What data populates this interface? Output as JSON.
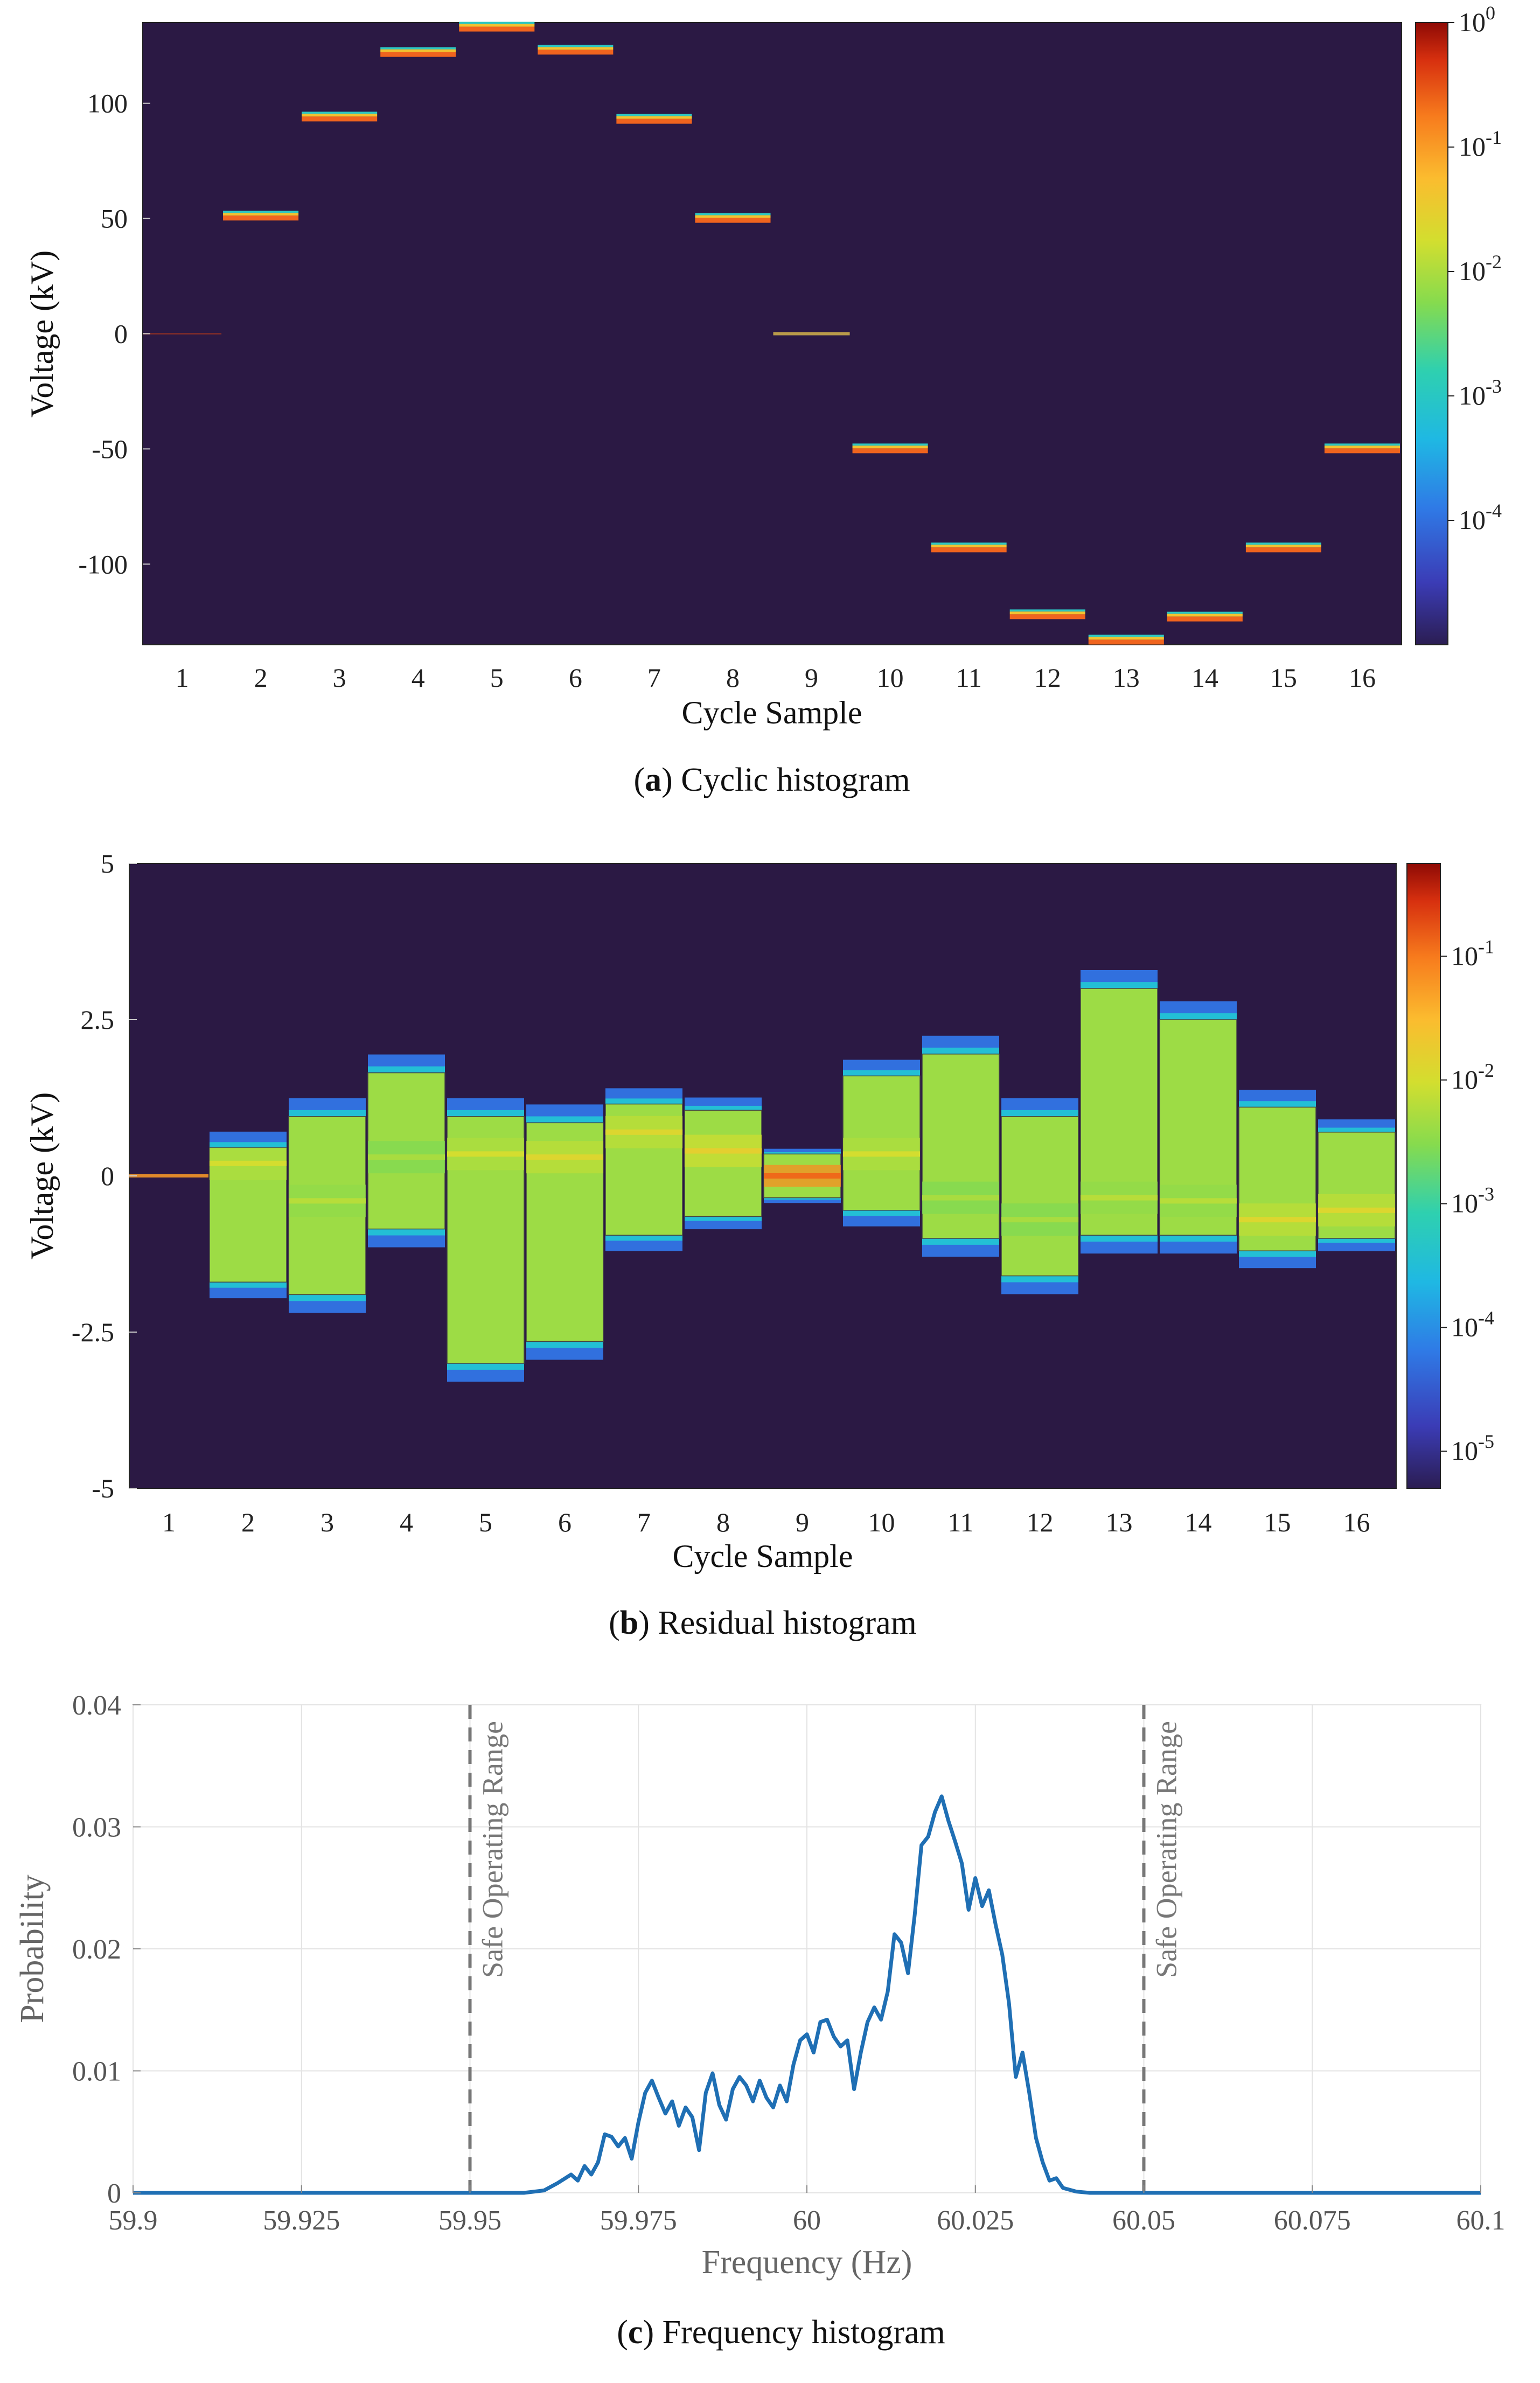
{
  "chart_data": [
    {
      "id": "a",
      "type": "heatmap",
      "caption_letter": "a",
      "caption_text": "Cyclic histogram",
      "xlabel": "Cycle Sample",
      "ylabel": "Voltage (kV)",
      "x_ticks": [
        "1",
        "2",
        "3",
        "4",
        "5",
        "6",
        "7",
        "8",
        "9",
        "10",
        "11",
        "12",
        "13",
        "14",
        "15",
        "16"
      ],
      "y_ticks": [
        {
          "value": 100,
          "label": "100"
        },
        {
          "value": 50,
          "label": "50"
        },
        {
          "value": 0,
          "label": "0"
        },
        {
          "value": -50,
          "label": "-50"
        },
        {
          "value": -100,
          "label": "-100"
        }
      ],
      "ylim": [
        -135,
        135
      ],
      "colorbar_ticks": [
        {
          "exp": 0,
          "label": "10",
          "sup": "0"
        },
        {
          "exp": -1,
          "label": "10",
          "sup": "-1"
        },
        {
          "exp": -2,
          "label": "10",
          "sup": "-2"
        },
        {
          "exp": -3,
          "label": "10",
          "sup": "-3"
        },
        {
          "exp": -4,
          "label": "10",
          "sup": "-4"
        }
      ],
      "colorbar_range_exp": [
        -5,
        0
      ],
      "samples": [
        {
          "sample": 1,
          "voltage": 0,
          "peak": 0.0001
        },
        {
          "sample": 2,
          "voltage": 51,
          "peak": 0.3
        },
        {
          "sample": 3,
          "voltage": 94,
          "peak": 0.3
        },
        {
          "sample": 4,
          "voltage": 122,
          "peak": 0.3
        },
        {
          "sample": 5,
          "voltage": 133,
          "peak": 0.3
        },
        {
          "sample": 6,
          "voltage": 123,
          "peak": 0.3
        },
        {
          "sample": 7,
          "voltage": 93,
          "peak": 0.3
        },
        {
          "sample": 8,
          "voltage": 50,
          "peak": 0.3
        },
        {
          "sample": 9,
          "voltage": 0,
          "peak": 0.02
        },
        {
          "sample": 10,
          "voltage": -50,
          "peak": 0.3
        },
        {
          "sample": 11,
          "voltage": -93,
          "peak": 0.3
        },
        {
          "sample": 12,
          "voltage": -122,
          "peak": 0.3
        },
        {
          "sample": 13,
          "voltage": -133,
          "peak": 0.3
        },
        {
          "sample": 14,
          "voltage": -123,
          "peak": 0.3
        },
        {
          "sample": 15,
          "voltage": -93,
          "peak": 0.3
        },
        {
          "sample": 16,
          "voltage": -50,
          "peak": 0.3
        }
      ]
    },
    {
      "id": "b",
      "type": "heatmap",
      "caption_letter": "b",
      "caption_text": "Residual histogram",
      "xlabel": "Cycle Sample",
      "ylabel": "Voltage (kV)",
      "x_ticks": [
        "1",
        "2",
        "3",
        "4",
        "5",
        "6",
        "7",
        "8",
        "9",
        "10",
        "11",
        "12",
        "13",
        "14",
        "15",
        "16"
      ],
      "y_ticks": [
        {
          "value": 5,
          "label": "5"
        },
        {
          "value": 2.5,
          "label": "2.5"
        },
        {
          "value": 0,
          "label": "0"
        },
        {
          "value": -2.5,
          "label": "-2.5"
        },
        {
          "value": -5,
          "label": "-5"
        }
      ],
      "ylim": [
        -5,
        5
      ],
      "colorbar_ticks": [
        {
          "exp": -1,
          "label": "10",
          "sup": "-1"
        },
        {
          "exp": -2,
          "label": "10",
          "sup": "-2"
        },
        {
          "exp": -3,
          "label": "10",
          "sup": "-3"
        },
        {
          "exp": -4,
          "label": "10",
          "sup": "-4"
        },
        {
          "exp": -5,
          "label": "10",
          "sup": "-5"
        }
      ],
      "colorbar_range_exp": [
        -5.3,
        -0.25
      ],
      "samples": [
        {
          "sample": 1,
          "low": -0.05,
          "high": 0.05,
          "hot": 0.0,
          "hot_level": -1.5
        },
        {
          "sample": 2,
          "low": -1.7,
          "high": 0.45,
          "hot": 0.2,
          "hot_level": -2.0
        },
        {
          "sample": 3,
          "low": -1.9,
          "high": 0.95,
          "hot": -0.4,
          "hot_level": -2.2
        },
        {
          "sample": 4,
          "low": -0.85,
          "high": 1.65,
          "hot": 0.3,
          "hot_level": -2.3
        },
        {
          "sample": 5,
          "low": -3.0,
          "high": 0.95,
          "hot": 0.35,
          "hot_level": -2.0
        },
        {
          "sample": 6,
          "low": -2.65,
          "high": 0.85,
          "hot": 0.3,
          "hot_level": -1.9
        },
        {
          "sample": 7,
          "low": -0.95,
          "high": 1.15,
          "hot": 0.7,
          "hot_level": -1.9
        },
        {
          "sample": 8,
          "low": -0.65,
          "high": 1.05,
          "hot": 0.4,
          "hot_level": -1.8
        },
        {
          "sample": 9,
          "low": -0.35,
          "high": 0.35,
          "hot": 0.0,
          "hot_level": -0.9
        },
        {
          "sample": 10,
          "low": -0.55,
          "high": 1.6,
          "hot": 0.35,
          "hot_level": -2.0
        },
        {
          "sample": 11,
          "low": -1.0,
          "high": 1.95,
          "hot": -0.35,
          "hot_level": -2.3
        },
        {
          "sample": 12,
          "low": -1.6,
          "high": 0.95,
          "hot": -0.7,
          "hot_level": -2.3
        },
        {
          "sample": 13,
          "low": -0.95,
          "high": 3.0,
          "hot": -0.35,
          "hot_level": -2.2
        },
        {
          "sample": 14,
          "low": -0.95,
          "high": 2.5,
          "hot": -0.4,
          "hot_level": -2.2
        },
        {
          "sample": 15,
          "low": -1.2,
          "high": 1.1,
          "hot": -0.7,
          "hot_level": -1.9
        },
        {
          "sample": 16,
          "low": -1.0,
          "high": 0.7,
          "hot": -0.55,
          "hot_level": -1.9
        }
      ]
    },
    {
      "id": "c",
      "type": "line",
      "caption_letter": "c",
      "caption_text": "Frequency histogram",
      "xlabel": "Frequency (Hz)",
      "ylabel": "Probability",
      "xlim": [
        59.9,
        60.1
      ],
      "ylim": [
        0,
        0.04
      ],
      "x_ticks": [
        {
          "value": 59.9,
          "label": "59.9"
        },
        {
          "value": 59.925,
          "label": "59.925"
        },
        {
          "value": 59.95,
          "label": "59.95"
        },
        {
          "value": 59.975,
          "label": "59.975"
        },
        {
          "value": 60.0,
          "label": "60"
        },
        {
          "value": 60.025,
          "label": "60.025"
        },
        {
          "value": 60.05,
          "label": "60.05"
        },
        {
          "value": 60.075,
          "label": "60.075"
        },
        {
          "value": 60.1,
          "label": "60.1"
        }
      ],
      "y_ticks": [
        {
          "value": 0,
          "label": "0"
        },
        {
          "value": 0.01,
          "label": "0.01"
        },
        {
          "value": 0.02,
          "label": "0.02"
        },
        {
          "value": 0.03,
          "label": "0.03"
        },
        {
          "value": 0.04,
          "label": "0.04"
        }
      ],
      "grid": true,
      "annotations": [
        {
          "x": 59.95,
          "text": "Safe Operating Range"
        },
        {
          "x": 60.05,
          "text": "Safe Operating Range"
        }
      ],
      "series": [
        {
          "name": "Frequency",
          "color": "#1f6fb4",
          "points": [
            [
              59.9,
              0
            ],
            [
              59.958,
              0
            ],
            [
              59.961,
              0.0002
            ],
            [
              59.963,
              0.0008
            ],
            [
              59.965,
              0.0015
            ],
            [
              59.966,
              0.001
            ],
            [
              59.967,
              0.0022
            ],
            [
              59.968,
              0.0015
            ],
            [
              59.969,
              0.0025
            ],
            [
              59.97,
              0.0048
            ],
            [
              59.971,
              0.0046
            ],
            [
              59.972,
              0.0038
            ],
            [
              59.973,
              0.0045
            ],
            [
              59.974,
              0.0028
            ],
            [
              59.975,
              0.0058
            ],
            [
              59.976,
              0.0082
            ],
            [
              59.977,
              0.0092
            ],
            [
              59.978,
              0.0078
            ],
            [
              59.979,
              0.0065
            ],
            [
              59.98,
              0.0075
            ],
            [
              59.981,
              0.0055
            ],
            [
              59.982,
              0.007
            ],
            [
              59.983,
              0.0062
            ],
            [
              59.984,
              0.0035
            ],
            [
              59.985,
              0.0082
            ],
            [
              59.986,
              0.0098
            ],
            [
              59.987,
              0.0072
            ],
            [
              59.988,
              0.006
            ],
            [
              59.989,
              0.0085
            ],
            [
              59.99,
              0.0095
            ],
            [
              59.991,
              0.0088
            ],
            [
              59.992,
              0.0075
            ],
            [
              59.993,
              0.0092
            ],
            [
              59.994,
              0.0078
            ],
            [
              59.995,
              0.007
            ],
            [
              59.996,
              0.0088
            ],
            [
              59.997,
              0.0075
            ],
            [
              59.998,
              0.0105
            ],
            [
              59.999,
              0.0125
            ],
            [
              60.0,
              0.013
            ],
            [
              60.001,
              0.0115
            ],
            [
              60.002,
              0.014
            ],
            [
              60.003,
              0.0142
            ],
            [
              60.004,
              0.0128
            ],
            [
              60.005,
              0.012
            ],
            [
              60.006,
              0.0125
            ],
            [
              60.007,
              0.0085
            ],
            [
              60.008,
              0.0115
            ],
            [
              60.009,
              0.014
            ],
            [
              60.01,
              0.0152
            ],
            [
              60.011,
              0.0142
            ],
            [
              60.012,
              0.0165
            ],
            [
              60.013,
              0.0212
            ],
            [
              60.014,
              0.0205
            ],
            [
              60.015,
              0.018
            ],
            [
              60.016,
              0.0228
            ],
            [
              60.017,
              0.0285
            ],
            [
              60.018,
              0.0292
            ],
            [
              60.019,
              0.0312
            ],
            [
              60.02,
              0.0325
            ],
            [
              60.021,
              0.0305
            ],
            [
              60.022,
              0.0288
            ],
            [
              60.023,
              0.027
            ],
            [
              60.024,
              0.0232
            ],
            [
              60.025,
              0.0258
            ],
            [
              60.026,
              0.0235
            ],
            [
              60.027,
              0.0248
            ],
            [
              60.028,
              0.022
            ],
            [
              60.029,
              0.0195
            ],
            [
              60.03,
              0.0155
            ],
            [
              60.031,
              0.0095
            ],
            [
              60.032,
              0.0115
            ],
            [
              60.033,
              0.0082
            ],
            [
              60.034,
              0.0045
            ],
            [
              60.035,
              0.0025
            ],
            [
              60.036,
              0.001
            ],
            [
              60.037,
              0.0012
            ],
            [
              60.038,
              0.0004
            ],
            [
              60.04,
              0.0001
            ],
            [
              60.042,
              0
            ],
            [
              60.1,
              0
            ]
          ]
        }
      ]
    }
  ]
}
